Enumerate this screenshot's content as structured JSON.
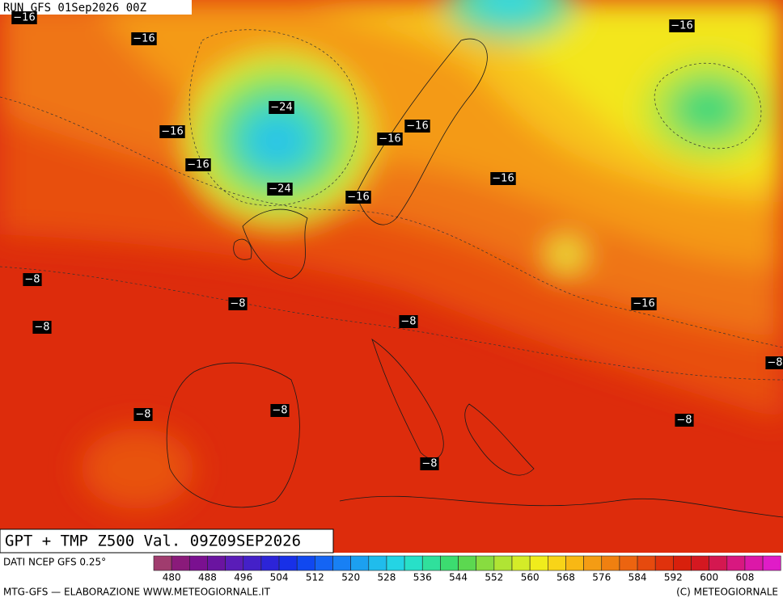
{
  "header": "RUN GFS 01Sep2026 00Z",
  "title": "GPT + TMP Z500 Val. 09Z09SEP2026",
  "source": "DATI NCEP GFS 0.25°",
  "footer": "MTG-GFS — ELABORAZIONE WWW.METEOGIORNALE.IT",
  "copyright": "(C) METEOGIORNALE",
  "colorbar": {
    "labels": [
      480,
      488,
      496,
      504,
      512,
      520,
      528,
      536,
      544,
      552,
      560,
      568,
      576,
      584,
      592,
      600,
      608
    ]
  },
  "contour_labels": [
    "−16",
    "−16",
    "−16",
    "−24",
    "−16",
    "−16",
    "−24",
    "−16",
    "−16",
    "−16",
    "−16",
    "−8",
    "−8",
    "−8",
    "−8",
    "−16",
    "−8",
    "−8",
    "−8",
    "−8",
    "−8"
  ]
}
